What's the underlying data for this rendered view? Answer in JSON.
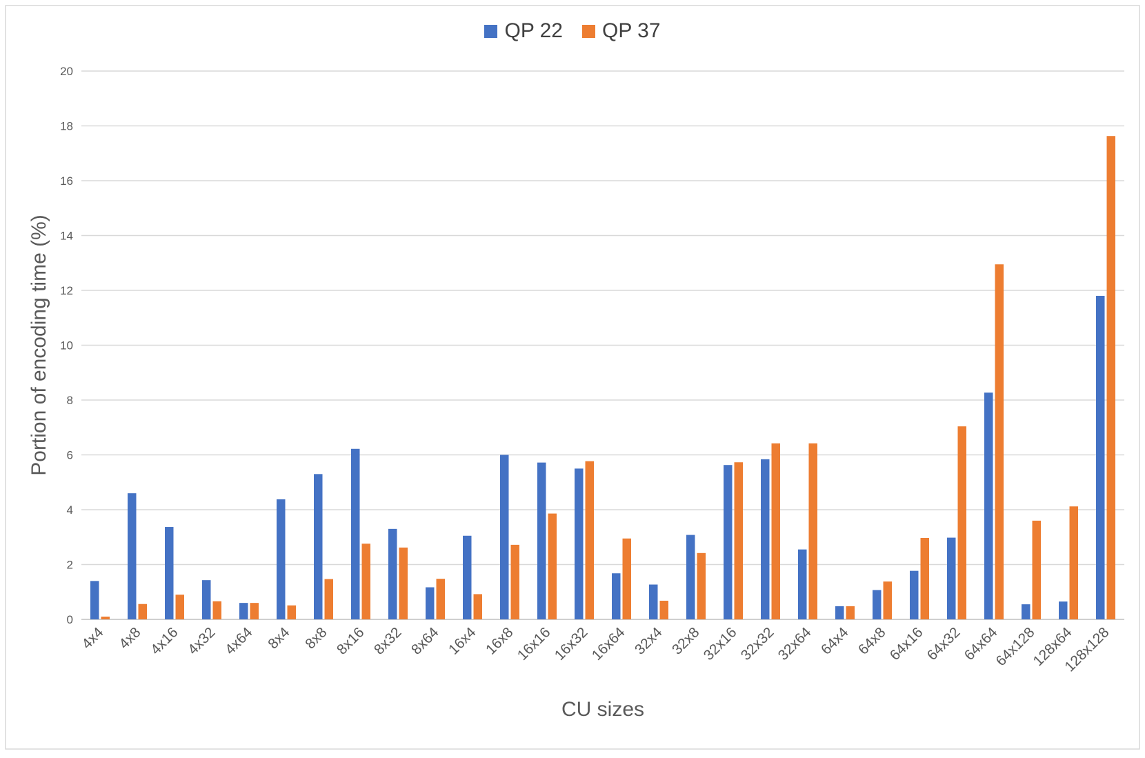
{
  "chart_data": {
    "type": "bar",
    "xlabel": "CU sizes",
    "ylabel": "Portion of encoding time (%)",
    "ylim": [
      0,
      20
    ],
    "yticks": [
      0,
      2,
      4,
      6,
      8,
      10,
      12,
      14,
      16,
      18,
      20
    ],
    "grid": true,
    "legend_position": "top-center",
    "categories": [
      "4x4",
      "4x8",
      "4x16",
      "4x32",
      "4x64",
      "8x4",
      "8x8",
      "8x16",
      "8x32",
      "8x64",
      "16x4",
      "16x8",
      "16x16",
      "16x32",
      "16x64",
      "32x4",
      "32x8",
      "32x16",
      "32x32",
      "32x64",
      "64x4",
      "64x8",
      "64x16",
      "64x32",
      "64x64",
      "64x128",
      "128x64",
      "128x128"
    ],
    "series": [
      {
        "name": "QP 22",
        "color": "#4472C4",
        "values": [
          1.4,
          4.6,
          3.37,
          1.43,
          0.6,
          4.38,
          5.3,
          6.22,
          3.3,
          1.17,
          3.05,
          6.0,
          5.72,
          5.5,
          1.68,
          1.27,
          3.08,
          5.63,
          5.84,
          2.55,
          0.48,
          1.07,
          1.77,
          2.98,
          8.27,
          0.55,
          0.65,
          11.8
        ]
      },
      {
        "name": "QP 37",
        "color": "#ED7D31",
        "values": [
          0.1,
          0.56,
          0.9,
          0.66,
          0.6,
          0.51,
          1.47,
          2.76,
          2.62,
          1.48,
          0.92,
          2.72,
          3.86,
          5.77,
          2.95,
          0.68,
          2.42,
          5.73,
          6.42,
          6.42,
          0.48,
          1.38,
          2.97,
          7.04,
          12.95,
          3.6,
          4.12,
          17.63
        ]
      }
    ]
  }
}
